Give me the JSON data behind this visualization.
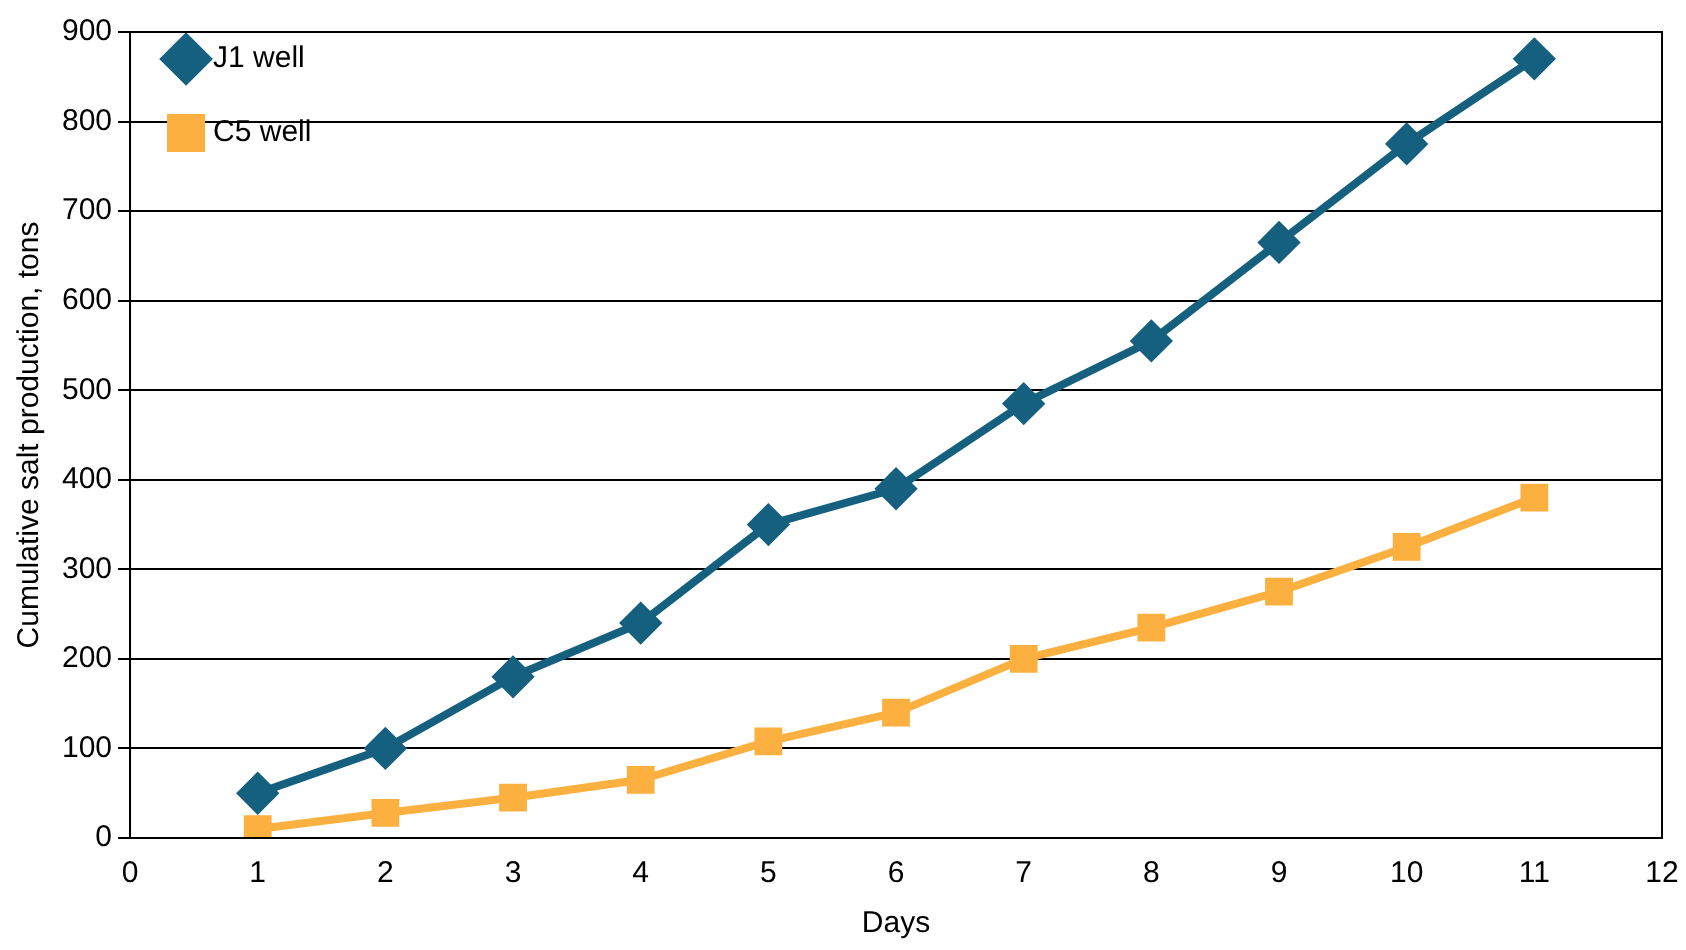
{
  "chart_data": {
    "type": "line",
    "xlabel": "Days",
    "ylabel": "Cumulative salt production, tons",
    "x": [
      1,
      2,
      3,
      4,
      5,
      6,
      7,
      8,
      9,
      10,
      11
    ],
    "series": [
      {
        "name": "J1 well",
        "color": "#15607f",
        "marker": "diamond",
        "values": [
          50,
          100,
          180,
          240,
          350,
          390,
          485,
          555,
          665,
          775,
          870
        ]
      },
      {
        "name": "C5 well",
        "color": "#fbb040",
        "marker": "square",
        "values": [
          10,
          28,
          45,
          65,
          108,
          140,
          200,
          235,
          275,
          325,
          380
        ]
      }
    ],
    "xlim": [
      0,
      12
    ],
    "xticks": [
      0,
      1,
      2,
      3,
      4,
      5,
      6,
      7,
      8,
      9,
      10,
      11,
      12
    ],
    "ylim": [
      0,
      900
    ],
    "yticks": [
      0,
      100,
      200,
      300,
      400,
      500,
      600,
      700,
      800,
      900
    ],
    "grid": "y",
    "legend": "top left",
    "line_style": "solid"
  }
}
